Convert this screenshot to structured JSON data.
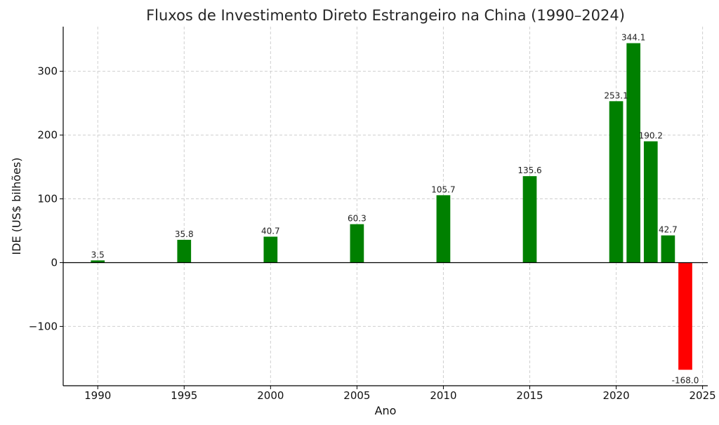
{
  "chart_data": {
    "type": "bar",
    "title": "Fluxos de Investimento Direto Estrangeiro na China (1990–2024)",
    "xlabel": "Ano",
    "ylabel": "IDE (US$ bilhões)",
    "xlim": [
      1988,
      2025.3
    ],
    "ylim": [
      -193,
      370
    ],
    "xticks": [
      1990,
      1995,
      2000,
      2005,
      2010,
      2015,
      2020,
      2025
    ],
    "yticks": [
      -100,
      0,
      100,
      200,
      300
    ],
    "ytick_labels": [
      "−100",
      "0",
      "100",
      "200",
      "300"
    ],
    "grid": true,
    "bar_width_years": 0.8,
    "positive_color": "#008000",
    "negative_color": "#ff0000",
    "bars": [
      {
        "x": 1990,
        "value": 3.5,
        "label": "3.5"
      },
      {
        "x": 1995,
        "value": 35.8,
        "label": "35.8"
      },
      {
        "x": 2000,
        "value": 40.7,
        "label": "40.7"
      },
      {
        "x": 2005,
        "value": 60.3,
        "label": "60.3"
      },
      {
        "x": 2010,
        "value": 105.7,
        "label": "105.7"
      },
      {
        "x": 2015,
        "value": 135.6,
        "label": "135.6"
      },
      {
        "x": 2020,
        "value": 253.1,
        "label": "253.1"
      },
      {
        "x": 2021,
        "value": 344.1,
        "label": "344.1"
      },
      {
        "x": 2022,
        "value": 190.2,
        "label": "190.2"
      },
      {
        "x": 2023,
        "value": 42.7,
        "label": "42.7"
      },
      {
        "x": 2024,
        "value": -168.0,
        "label": "-168.0"
      }
    ]
  }
}
